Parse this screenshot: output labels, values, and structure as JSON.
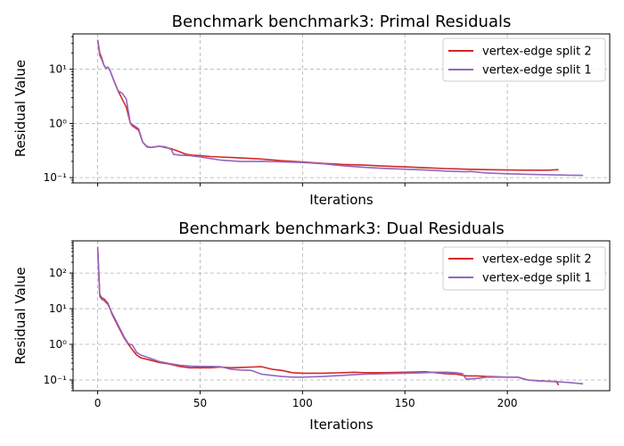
{
  "chart_data": [
    {
      "type": "line",
      "title": "Benchmark benchmark3: Primal Residuals",
      "xlabel": "Iterations",
      "ylabel": "Residual Value",
      "yscale": "log",
      "xlim": [
        -12,
        250
      ],
      "ylim": [
        0.08,
        45
      ],
      "xticks": [
        0,
        50,
        100,
        150,
        200
      ],
      "xtick_labels_shown": false,
      "yticks": [
        0.1,
        1,
        10
      ],
      "ytick_labels": [
        "10⁻¹",
        "10⁰",
        "10¹"
      ],
      "grid": true,
      "legend_position": "top-right",
      "series": [
        {
          "name": "vertex-edge split 2",
          "color": "#d62728",
          "x": [
            0,
            1,
            2,
            3,
            4,
            5,
            6,
            8,
            10,
            12,
            14,
            16,
            17,
            18,
            20,
            22,
            24,
            26,
            30,
            33,
            36,
            40,
            43,
            46,
            50,
            55,
            60,
            70,
            80,
            90,
            100,
            110,
            120,
            130,
            140,
            150,
            160,
            170,
            180,
            190,
            200,
            210,
            220,
            225
          ],
          "y": [
            35,
            20,
            16,
            12,
            10.5,
            11,
            9.5,
            6,
            4,
            2.8,
            2.0,
            1.0,
            0.9,
            0.85,
            0.75,
            0.45,
            0.37,
            0.36,
            0.38,
            0.36,
            0.34,
            0.3,
            0.27,
            0.26,
            0.255,
            0.245,
            0.24,
            0.23,
            0.22,
            0.205,
            0.195,
            0.183,
            0.175,
            0.17,
            0.163,
            0.158,
            0.152,
            0.147,
            0.143,
            0.14,
            0.138,
            0.137,
            0.137,
            0.14
          ]
        },
        {
          "name": "vertex-edge split 1",
          "color": "#9467bd",
          "x": [
            0,
            1,
            2,
            3,
            4,
            5,
            6,
            8,
            10,
            12,
            14,
            16,
            17,
            18,
            20,
            22,
            24,
            26,
            30,
            33,
            36,
            37,
            40,
            45,
            50,
            55,
            60,
            70,
            80,
            90,
            100,
            110,
            120,
            130,
            140,
            150,
            160,
            170,
            175,
            180,
            182,
            190,
            200,
            210,
            220,
            230,
            237
          ],
          "y": [
            35,
            18,
            15,
            12,
            10.5,
            11,
            9.5,
            6,
            4,
            3.6,
            2.8,
            1.0,
            0.95,
            0.9,
            0.8,
            0.45,
            0.38,
            0.36,
            0.38,
            0.37,
            0.33,
            0.27,
            0.26,
            0.255,
            0.24,
            0.225,
            0.21,
            0.198,
            0.2,
            0.195,
            0.19,
            0.18,
            0.165,
            0.155,
            0.148,
            0.143,
            0.138,
            0.132,
            0.13,
            0.128,
            0.13,
            0.122,
            0.118,
            0.115,
            0.113,
            0.111,
            0.11
          ]
        }
      ]
    },
    {
      "type": "line",
      "title": "Benchmark benchmark3: Dual Residuals",
      "xlabel": "Iterations",
      "ylabel": "Residual Value",
      "yscale": "log",
      "xlim": [
        -12,
        250
      ],
      "ylim": [
        0.05,
        800
      ],
      "xticks": [
        0,
        50,
        100,
        150,
        200
      ],
      "xtick_labels": [
        "0",
        "50",
        "100",
        "150",
        "200"
      ],
      "yticks": [
        0.1,
        1,
        10,
        100
      ],
      "ytick_labels": [
        "10⁻¹",
        "10⁰",
        "10¹",
        "10²"
      ],
      "grid": true,
      "legend_position": "top-right",
      "series": [
        {
          "name": "vertex-edge split 2",
          "color": "#d62728",
          "x": [
            0,
            1,
            2,
            3,
            5,
            7,
            10,
            13,
            15,
            17,
            19,
            21,
            25,
            30,
            35,
            40,
            45,
            50,
            55,
            60,
            65,
            70,
            75,
            80,
            85,
            90,
            95,
            100,
            110,
            120,
            125,
            130,
            140,
            150,
            160,
            165,
            170,
            175,
            180,
            185,
            190,
            200,
            205,
            210,
            215,
            220,
            224,
            225
          ],
          "y": [
            500,
            25,
            20,
            19,
            14,
            7,
            3.2,
            1.5,
            1.0,
            0.7,
            0.5,
            0.42,
            0.37,
            0.31,
            0.28,
            0.24,
            0.22,
            0.22,
            0.22,
            0.23,
            0.22,
            0.225,
            0.23,
            0.235,
            0.2,
            0.185,
            0.16,
            0.155,
            0.155,
            0.16,
            0.165,
            0.16,
            0.16,
            0.165,
            0.17,
            0.16,
            0.15,
            0.145,
            0.13,
            0.13,
            0.125,
            0.12,
            0.12,
            0.1,
            0.095,
            0.092,
            0.09,
            0.072
          ]
        },
        {
          "name": "vertex-edge split 1",
          "color": "#9467bd",
          "x": [
            0,
            1,
            2,
            3,
            5,
            7,
            10,
            13,
            15,
            17,
            19,
            21,
            25,
            30,
            35,
            40,
            45,
            50,
            55,
            60,
            65,
            70,
            75,
            80,
            85,
            90,
            95,
            100,
            110,
            120,
            125,
            130,
            140,
            150,
            160,
            165,
            170,
            175,
            178,
            180,
            185,
            190,
            200,
            205,
            210,
            215,
            220,
            230,
            237
          ],
          "y": [
            550,
            22,
            18,
            17,
            13,
            7.5,
            3.5,
            1.6,
            1.05,
            0.95,
            0.6,
            0.5,
            0.42,
            0.33,
            0.29,
            0.26,
            0.245,
            0.24,
            0.24,
            0.235,
            0.2,
            0.19,
            0.185,
            0.145,
            0.135,
            0.125,
            0.12,
            0.12,
            0.125,
            0.135,
            0.14,
            0.145,
            0.15,
            0.155,
            0.16,
            0.165,
            0.165,
            0.16,
            0.15,
            0.105,
            0.11,
            0.12,
            0.12,
            0.12,
            0.1,
            0.095,
            0.092,
            0.085,
            0.078
          ]
        }
      ]
    }
  ]
}
